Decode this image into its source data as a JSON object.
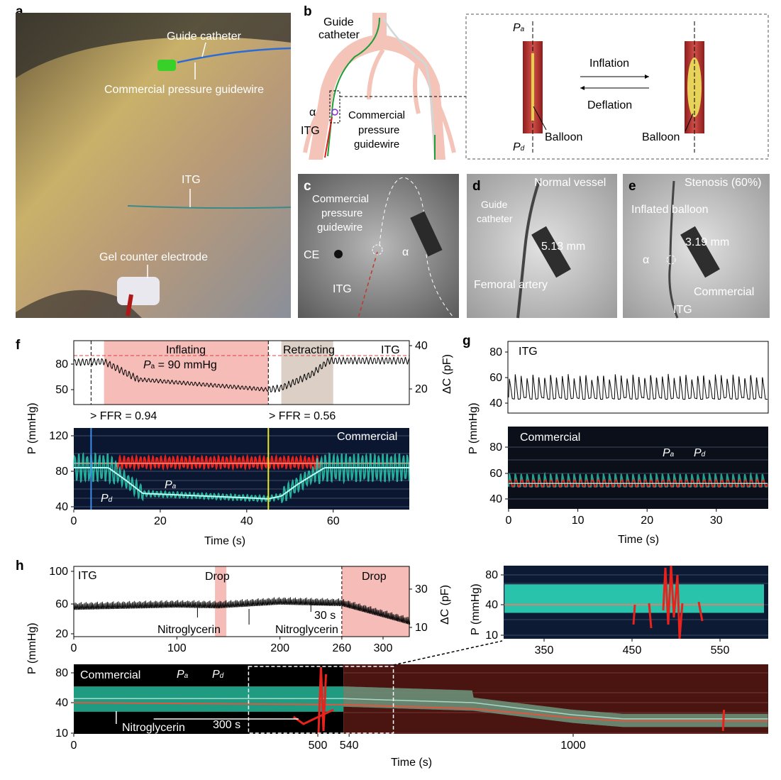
{
  "panels": {
    "a": {
      "label": "a",
      "annotations": [
        "Guide catheter",
        "Commercial pressure guidewire",
        "ITG",
        "Gel counter electrode"
      ]
    },
    "b": {
      "label": "b",
      "guide_catheter": [
        "Guide",
        "catheter"
      ],
      "alpha": "α",
      "itg": "ITG",
      "commercial": [
        "Commercial",
        "pressure",
        "guidewire"
      ],
      "pa": "P",
      "pa_sub": "a",
      "pd": "P",
      "pd_sub": "d",
      "inflation": "Inflation",
      "deflation": "Deflation",
      "balloon_left": "Balloon",
      "balloon_right": "Balloon"
    },
    "c": {
      "label": "c",
      "commercial": [
        "Commercial",
        "pressure",
        "guidewire"
      ],
      "ce": "CE",
      "alpha": "α",
      "itg": "ITG"
    },
    "d": {
      "label": "d",
      "title": "Normal vessel",
      "guide": [
        "Guide",
        "catheter"
      ],
      "measure": "5.13 mm",
      "femoral": "Femoral artery"
    },
    "e": {
      "label": "e",
      "title": "Stenosis (60%)",
      "inflated": "Inflated balloon",
      "measure": "3.19 mm",
      "alpha": "α",
      "commercial": "Commercial",
      "itg": "ITG"
    },
    "f": {
      "label": "f"
    },
    "g": {
      "label": "g"
    },
    "h": {
      "label": "h"
    }
  },
  "colors": {
    "pa_red": "#e8221c",
    "pd_teal": "#2fe0c0",
    "inflating_shade": "#f5bcb8",
    "retracting_shade": "#dcd0c6",
    "drop_shade": "#f5bcb8",
    "dark_bg": "#0b1630",
    "red_bg": "#4a1410"
  },
  "chart_data": [
    {
      "id": "f-top",
      "type": "line",
      "series": [
        {
          "name": "ITG",
          "x": [
            0,
            7,
            10,
            15,
            25,
            40,
            45,
            48,
            55,
            59,
            77
          ],
          "y": [
            82,
            83,
            75,
            62,
            58,
            52,
            50,
            52,
            68,
            84,
            84
          ]
        }
      ],
      "title": "ITG",
      "ylabel": "P (mmHg)",
      "y2label": "ΔC (pF)",
      "yticks": [
        "80",
        "50"
      ],
      "y2ticks": [
        "40",
        "20"
      ],
      "ylim": [
        45,
        95
      ],
      "xlim": [
        0,
        77
      ],
      "reference_line": 90,
      "regions": [
        {
          "label": "Inflating",
          "x": [
            7,
            45
          ]
        },
        {
          "label": "Retracting",
          "x": [
            48,
            60
          ]
        }
      ],
      "annotations": {
        "pa_text": "P",
        "pa_sub": "a",
        "pa_value": " = 90 mmHg",
        "ffr1": "FFR = 0.94",
        "ffr2": "FFR = 0.56"
      },
      "markers_x": [
        4,
        45
      ]
    },
    {
      "id": "f-bottom",
      "type": "line",
      "title": "Commercial",
      "xlabel": "Time (s)",
      "ylabel": "P (mmHg)",
      "xticks": [
        "0",
        "20",
        "40",
        "60"
      ],
      "yticks": [
        "120",
        "80",
        "40"
      ],
      "xlim": [
        0,
        77
      ],
      "ylim": [
        38,
        125
      ],
      "series": [
        {
          "name": "Pa",
          "x": [
            0,
            77
          ],
          "y": [
            90,
            90
          ]
        },
        {
          "name": "Pd",
          "x": [
            0,
            8,
            12,
            16,
            45,
            48,
            52,
            58,
            77
          ],
          "y": [
            84,
            84,
            70,
            55,
            49,
            52,
            66,
            84,
            84
          ]
        }
      ],
      "labels": {
        "pa": "P",
        "pa_sub": "a",
        "pd": "P",
        "pd_sub": "d"
      },
      "markers_x": [
        4,
        45
      ]
    },
    {
      "id": "g-top",
      "type": "line",
      "title": "ITG",
      "yticks": [
        "80",
        "60",
        "40"
      ],
      "ylim": [
        35,
        87
      ],
      "xlim": [
        0,
        37
      ],
      "series": [
        {
          "name": "ITG",
          "x": [
            0,
            37
          ],
          "y": [
            48,
            48
          ]
        }
      ]
    },
    {
      "id": "g-bottom",
      "type": "line",
      "title": "Commercial",
      "xlabel": "Time (s)",
      "ylabel": "P (mmHg)",
      "xticks": [
        "0",
        "10",
        "20",
        "30"
      ],
      "yticks": [
        "80",
        "60",
        "40"
      ],
      "xlim": [
        0,
        37
      ],
      "ylim": [
        35,
        90
      ],
      "series": [
        {
          "name": "Pa",
          "x": [
            0,
            37
          ],
          "y": [
            52,
            52
          ]
        },
        {
          "name": "Pd",
          "x": [
            0,
            37
          ],
          "y": [
            52,
            52
          ]
        }
      ],
      "labels": {
        "pa": "P",
        "pa_sub": "a",
        "pd": "P",
        "pd_sub": "d"
      }
    },
    {
      "id": "h-top",
      "type": "line",
      "title": "ITG",
      "ylabel": "P (mmHg)",
      "y2label": "ΔC (pF)",
      "xticks": [
        "0",
        "100",
        "200",
        "260",
        "300"
      ],
      "yticks": [
        "100",
        "60",
        "20"
      ],
      "y2ticks": [
        "30",
        "10"
      ],
      "xlim": [
        0,
        326
      ],
      "ylim": [
        15,
        103
      ],
      "series": [
        {
          "name": "ITG",
          "x": [
            0,
            100,
            140,
            200,
            260,
            300,
            326
          ],
          "y": [
            55,
            58,
            57,
            62,
            60,
            45,
            35
          ]
        }
      ],
      "regions": [
        {
          "label": "Drop",
          "x": [
            137,
            148
          ]
        },
        {
          "label": "Drop",
          "x": [
            260,
            326
          ]
        }
      ],
      "annotations": {
        "nitro1": "Nitroglycerin",
        "nitro2": "Nitroglycerin",
        "scale": "30 s"
      }
    },
    {
      "id": "h-inset",
      "type": "line",
      "ylabel": "P (mmHg)",
      "xticks": [
        "350",
        "450",
        "550"
      ],
      "yticks": [
        "80",
        "40",
        "10"
      ],
      "xlim": [
        305,
        600
      ],
      "ylim": [
        7,
        90
      ],
      "series": [
        {
          "name": "Pd",
          "x": [
            305,
            600
          ],
          "y": [
            44,
            44
          ]
        },
        {
          "name": "Pa",
          "x": [
            305,
            600
          ],
          "y": [
            40,
            40
          ]
        }
      ]
    },
    {
      "id": "h-bottom",
      "type": "line",
      "title": "Commercial",
      "xlabel": "Time (s)",
      "xticks": [
        "0",
        "500",
        "540",
        "1000"
      ],
      "yticks": [
        "80",
        "40",
        "10"
      ],
      "xlim": [
        0,
        1390
      ],
      "ylim": [
        8,
        88
      ],
      "series": [
        {
          "name": "Pd",
          "x": [
            0,
            540,
            800,
            1000,
            1100,
            1390
          ],
          "y": [
            44,
            44,
            40,
            28,
            24,
            24
          ]
        },
        {
          "name": "Pa",
          "x": [
            0,
            540,
            800,
            1000,
            1100,
            1390
          ],
          "y": [
            40,
            38,
            34,
            25,
            22,
            22
          ]
        }
      ],
      "labels": {
        "pa": "P",
        "pa_sub": "a",
        "pd": "P",
        "pd_sub": "d",
        "nitro": "Nitroglycerin",
        "scale": "300 s"
      }
    }
  ]
}
